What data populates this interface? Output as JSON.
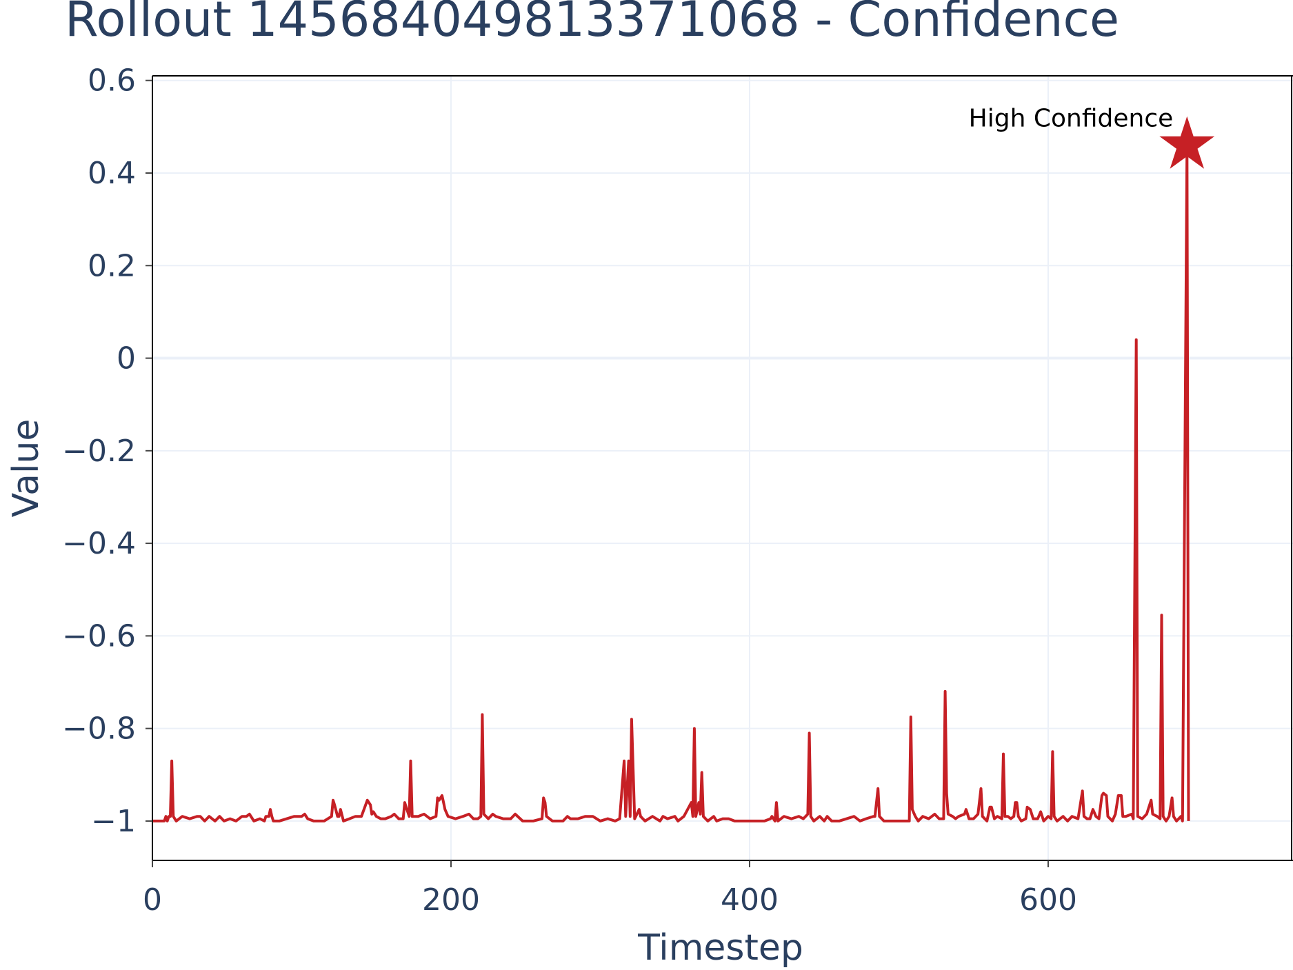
{
  "chart_data": {
    "type": "line",
    "title": "Rollout 14568404981337106​8 - Confidence",
    "xlabel": "Timestep",
    "ylabel": "Value",
    "xlim": [
      0,
      764
    ],
    "ylim": [
      -1.085,
      0.61
    ],
    "x_ticks": [
      0,
      200,
      400,
      600
    ],
    "x_tick_labels": [
      "0",
      "200",
      "400",
      "600"
    ],
    "y_ticks": [
      0.6,
      0.4,
      0.2,
      0,
      -0.2,
      -0.4,
      -0.6,
      -0.8,
      -1
    ],
    "y_tick_labels": [
      "0.6",
      "0.4",
      "0.2",
      "0",
      "−0.2",
      "−0.4",
      "−0.6",
      "−0.8",
      "−1"
    ],
    "grid": true,
    "line_color": "#c62025",
    "series": [
      {
        "name": "",
        "points": [
          [
            0,
            -1.0
          ],
          [
            8,
            -1.0
          ],
          [
            9,
            -0.99
          ],
          [
            10,
            -1.0
          ],
          [
            11,
            -0.99
          ],
          [
            12,
            -0.99
          ],
          [
            13,
            -0.87
          ],
          [
            14,
            -0.99
          ],
          [
            16,
            -1.0
          ],
          [
            20,
            -0.99
          ],
          [
            25,
            -0.995
          ],
          [
            30,
            -0.99
          ],
          [
            32,
            -0.99
          ],
          [
            35,
            -1.0
          ],
          [
            38,
            -0.99
          ],
          [
            42,
            -1.0
          ],
          [
            45,
            -0.99
          ],
          [
            48,
            -1.0
          ],
          [
            52,
            -0.995
          ],
          [
            56,
            -1.0
          ],
          [
            60,
            -0.99
          ],
          [
            63,
            -0.99
          ],
          [
            65,
            -0.985
          ],
          [
            68,
            -1.0
          ],
          [
            72,
            -0.995
          ],
          [
            75,
            -1.0
          ],
          [
            76,
            -0.99
          ],
          [
            78,
            -0.99
          ],
          [
            79,
            -0.975
          ],
          [
            80,
            -0.99
          ],
          [
            81,
            -1.0
          ],
          [
            85,
            -1.0
          ],
          [
            90,
            -0.995
          ],
          [
            95,
            -0.99
          ],
          [
            100,
            -0.99
          ],
          [
            102,
            -0.985
          ],
          [
            104,
            -0.995
          ],
          [
            108,
            -1.0
          ],
          [
            115,
            -1.0
          ],
          [
            120,
            -0.99
          ],
          [
            121,
            -0.955
          ],
          [
            122,
            -0.965
          ],
          [
            124,
            -0.99
          ],
          [
            125,
            -0.99
          ],
          [
            126,
            -0.975
          ],
          [
            128,
            -1.0
          ],
          [
            132,
            -0.995
          ],
          [
            136,
            -0.99
          ],
          [
            140,
            -0.99
          ],
          [
            144,
            -0.955
          ],
          [
            145,
            -0.96
          ],
          [
            146,
            -0.965
          ],
          [
            147,
            -0.985
          ],
          [
            148,
            -0.98
          ],
          [
            150,
            -0.99
          ],
          [
            153,
            -0.995
          ],
          [
            156,
            -0.995
          ],
          [
            160,
            -0.99
          ],
          [
            162,
            -0.985
          ],
          [
            165,
            -0.995
          ],
          [
            168,
            -0.995
          ],
          [
            169,
            -0.96
          ],
          [
            170,
            -0.97
          ],
          [
            172,
            -0.99
          ],
          [
            173,
            -0.87
          ],
          [
            174,
            -0.99
          ],
          [
            178,
            -0.99
          ],
          [
            182,
            -0.985
          ],
          [
            186,
            -0.995
          ],
          [
            190,
            -0.99
          ],
          [
            191,
            -0.95
          ],
          [
            192,
            -0.955
          ],
          [
            194,
            -0.945
          ],
          [
            195,
            -0.96
          ],
          [
            196,
            -0.975
          ],
          [
            198,
            -0.99
          ],
          [
            203,
            -0.995
          ],
          [
            208,
            -0.99
          ],
          [
            212,
            -0.985
          ],
          [
            215,
            -0.995
          ],
          [
            218,
            -0.995
          ],
          [
            220,
            -0.99
          ],
          [
            221,
            -0.77
          ],
          [
            222,
            -0.985
          ],
          [
            225,
            -0.995
          ],
          [
            228,
            -0.985
          ],
          [
            230,
            -0.99
          ],
          [
            235,
            -0.995
          ],
          [
            240,
            -0.995
          ],
          [
            243,
            -0.985
          ],
          [
            248,
            -1.0
          ],
          [
            255,
            -1.0
          ],
          [
            261,
            -0.995
          ],
          [
            262,
            -0.95
          ],
          [
            263,
            -0.96
          ],
          [
            264,
            -0.99
          ],
          [
            268,
            -1.0
          ],
          [
            272,
            -1.0
          ],
          [
            275,
            -1.0
          ],
          [
            278,
            -0.99
          ],
          [
            280,
            -0.995
          ],
          [
            285,
            -0.995
          ],
          [
            290,
            -0.99
          ],
          [
            295,
            -0.99
          ],
          [
            300,
            -1.0
          ],
          [
            305,
            -0.995
          ],
          [
            310,
            -1.0
          ],
          [
            313,
            -0.995
          ],
          [
            316,
            -0.87
          ],
          [
            317,
            -0.99
          ],
          [
            319,
            -0.87
          ],
          [
            320,
            -0.99
          ],
          [
            321,
            -0.78
          ],
          [
            323,
            -0.995
          ],
          [
            326,
            -0.975
          ],
          [
            327,
            -0.99
          ],
          [
            330,
            -1.0
          ],
          [
            335,
            -0.99
          ],
          [
            340,
            -1.0
          ],
          [
            342,
            -0.99
          ],
          [
            345,
            -0.995
          ],
          [
            350,
            -0.99
          ],
          [
            352,
            -1.0
          ],
          [
            356,
            -0.99
          ],
          [
            361,
            -0.96
          ],
          [
            362,
            -0.99
          ],
          [
            363,
            -0.8
          ],
          [
            364,
            -0.99
          ],
          [
            366,
            -0.96
          ],
          [
            367,
            -0.985
          ],
          [
            368,
            -0.895
          ],
          [
            369,
            -0.99
          ],
          [
            372,
            -1.0
          ],
          [
            376,
            -0.99
          ],
          [
            378,
            -1.0
          ],
          [
            382,
            -0.995
          ],
          [
            386,
            -0.995
          ],
          [
            390,
            -1.0
          ],
          [
            400,
            -1.0
          ],
          [
            410,
            -1.0
          ],
          [
            414,
            -0.995
          ],
          [
            415,
            -0.99
          ],
          [
            416,
            -0.995
          ],
          [
            417,
            -1.0
          ],
          [
            418,
            -0.96
          ],
          [
            419,
            -1.0
          ],
          [
            423,
            -0.99
          ],
          [
            428,
            -0.995
          ],
          [
            433,
            -0.99
          ],
          [
            436,
            -0.995
          ],
          [
            439,
            -0.985
          ],
          [
            440,
            -0.81
          ],
          [
            441,
            -0.99
          ],
          [
            443,
            -1.0
          ],
          [
            447,
            -0.99
          ],
          [
            450,
            -1.0
          ],
          [
            452,
            -0.99
          ],
          [
            455,
            -1.0
          ],
          [
            460,
            -1.0
          ],
          [
            465,
            -0.995
          ],
          [
            470,
            -0.99
          ],
          [
            474,
            -1.0
          ],
          [
            478,
            -0.995
          ],
          [
            483,
            -0.99
          ],
          [
            484,
            -0.99
          ],
          [
            486,
            -0.93
          ],
          [
            487,
            -0.99
          ],
          [
            490,
            -1.0
          ],
          [
            497,
            -1.0
          ],
          [
            502,
            -1.0
          ],
          [
            507,
            -1.0
          ],
          [
            508,
            -0.775
          ],
          [
            509,
            -0.975
          ],
          [
            511,
            -0.99
          ],
          [
            513,
            -1.0
          ],
          [
            516,
            -0.99
          ],
          [
            520,
            -0.995
          ],
          [
            524,
            -0.985
          ],
          [
            527,
            -0.995
          ],
          [
            530,
            -0.995
          ],
          [
            531,
            -0.72
          ],
          [
            532,
            -0.94
          ],
          [
            533,
            -0.985
          ],
          [
            536,
            -0.99
          ],
          [
            538,
            -0.995
          ],
          [
            540,
            -0.99
          ],
          [
            544,
            -0.985
          ],
          [
            545,
            -0.975
          ],
          [
            547,
            -0.995
          ],
          [
            550,
            -0.995
          ],
          [
            553,
            -0.985
          ],
          [
            555,
            -0.93
          ],
          [
            556,
            -0.99
          ],
          [
            559,
            -1.0
          ],
          [
            561,
            -0.97
          ],
          [
            562,
            -0.97
          ],
          [
            564,
            -0.995
          ],
          [
            566,
            -0.99
          ],
          [
            569,
            -0.995
          ],
          [
            570,
            -0.855
          ],
          [
            571,
            -0.99
          ],
          [
            573,
            -0.99
          ],
          [
            575,
            -0.995
          ],
          [
            577,
            -0.99
          ],
          [
            578,
            -0.96
          ],
          [
            579,
            -0.96
          ],
          [
            580,
            -0.99
          ],
          [
            582,
            -1.0
          ],
          [
            585,
            -0.995
          ],
          [
            586,
            -0.97
          ],
          [
            588,
            -0.975
          ],
          [
            590,
            -0.995
          ],
          [
            593,
            -0.995
          ],
          [
            595,
            -0.98
          ],
          [
            597,
            -1.0
          ],
          [
            600,
            -0.99
          ],
          [
            602,
            -0.995
          ],
          [
            603,
            -0.85
          ],
          [
            604,
            -0.99
          ],
          [
            606,
            -1.0
          ],
          [
            610,
            -0.99
          ],
          [
            613,
            -1.0
          ],
          [
            616,
            -0.99
          ],
          [
            620,
            -0.995
          ],
          [
            623,
            -0.935
          ],
          [
            624,
            -0.99
          ],
          [
            626,
            -0.995
          ],
          [
            628,
            -0.995
          ],
          [
            630,
            -0.975
          ],
          [
            632,
            -0.99
          ],
          [
            634,
            -0.995
          ],
          [
            636,
            -0.945
          ],
          [
            637,
            -0.94
          ],
          [
            639,
            -0.945
          ],
          [
            640,
            -0.99
          ],
          [
            643,
            -1.0
          ],
          [
            645,
            -0.985
          ],
          [
            647,
            -0.945
          ],
          [
            649,
            -0.945
          ],
          [
            650,
            -0.99
          ],
          [
            652,
            -0.99
          ],
          [
            656,
            -0.985
          ],
          [
            657,
            -0.995
          ],
          [
            659,
            0.04
          ],
          [
            660,
            -0.99
          ],
          [
            663,
            -0.995
          ],
          [
            666,
            -0.985
          ],
          [
            669,
            -0.955
          ],
          [
            670,
            -0.985
          ],
          [
            673,
            -0.99
          ],
          [
            675,
            -0.995
          ],
          [
            676,
            -0.555
          ],
          [
            677,
            -0.99
          ],
          [
            679,
            -1.0
          ],
          [
            681,
            -0.99
          ],
          [
            683,
            -0.95
          ],
          [
            684,
            -0.99
          ],
          [
            686,
            -1.0
          ],
          [
            689,
            -0.99
          ],
          [
            690,
            -1.0
          ],
          [
            693,
            0.46
          ],
          [
            694,
            -1.0
          ]
        ]
      }
    ],
    "annotation": {
      "text": "High Confidence",
      "x": 693,
      "y": 0.46,
      "marker": "star"
    }
  }
}
